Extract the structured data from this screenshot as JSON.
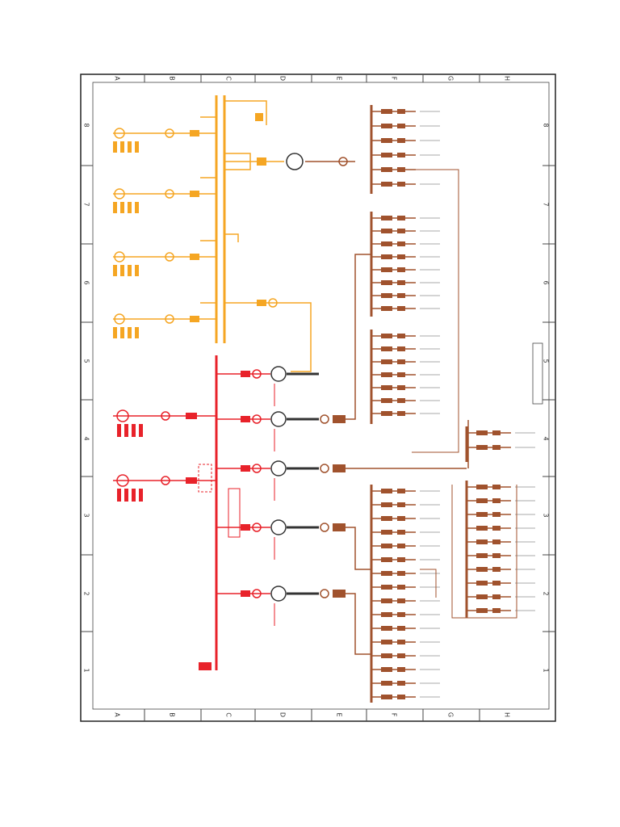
{
  "grid": {
    "columns": [
      "A",
      "B",
      "C",
      "D",
      "E",
      "F",
      "G",
      "H"
    ],
    "rows": [
      "8",
      "7",
      "6",
      "5",
      "4",
      "3",
      "2",
      "1"
    ]
  }
}
